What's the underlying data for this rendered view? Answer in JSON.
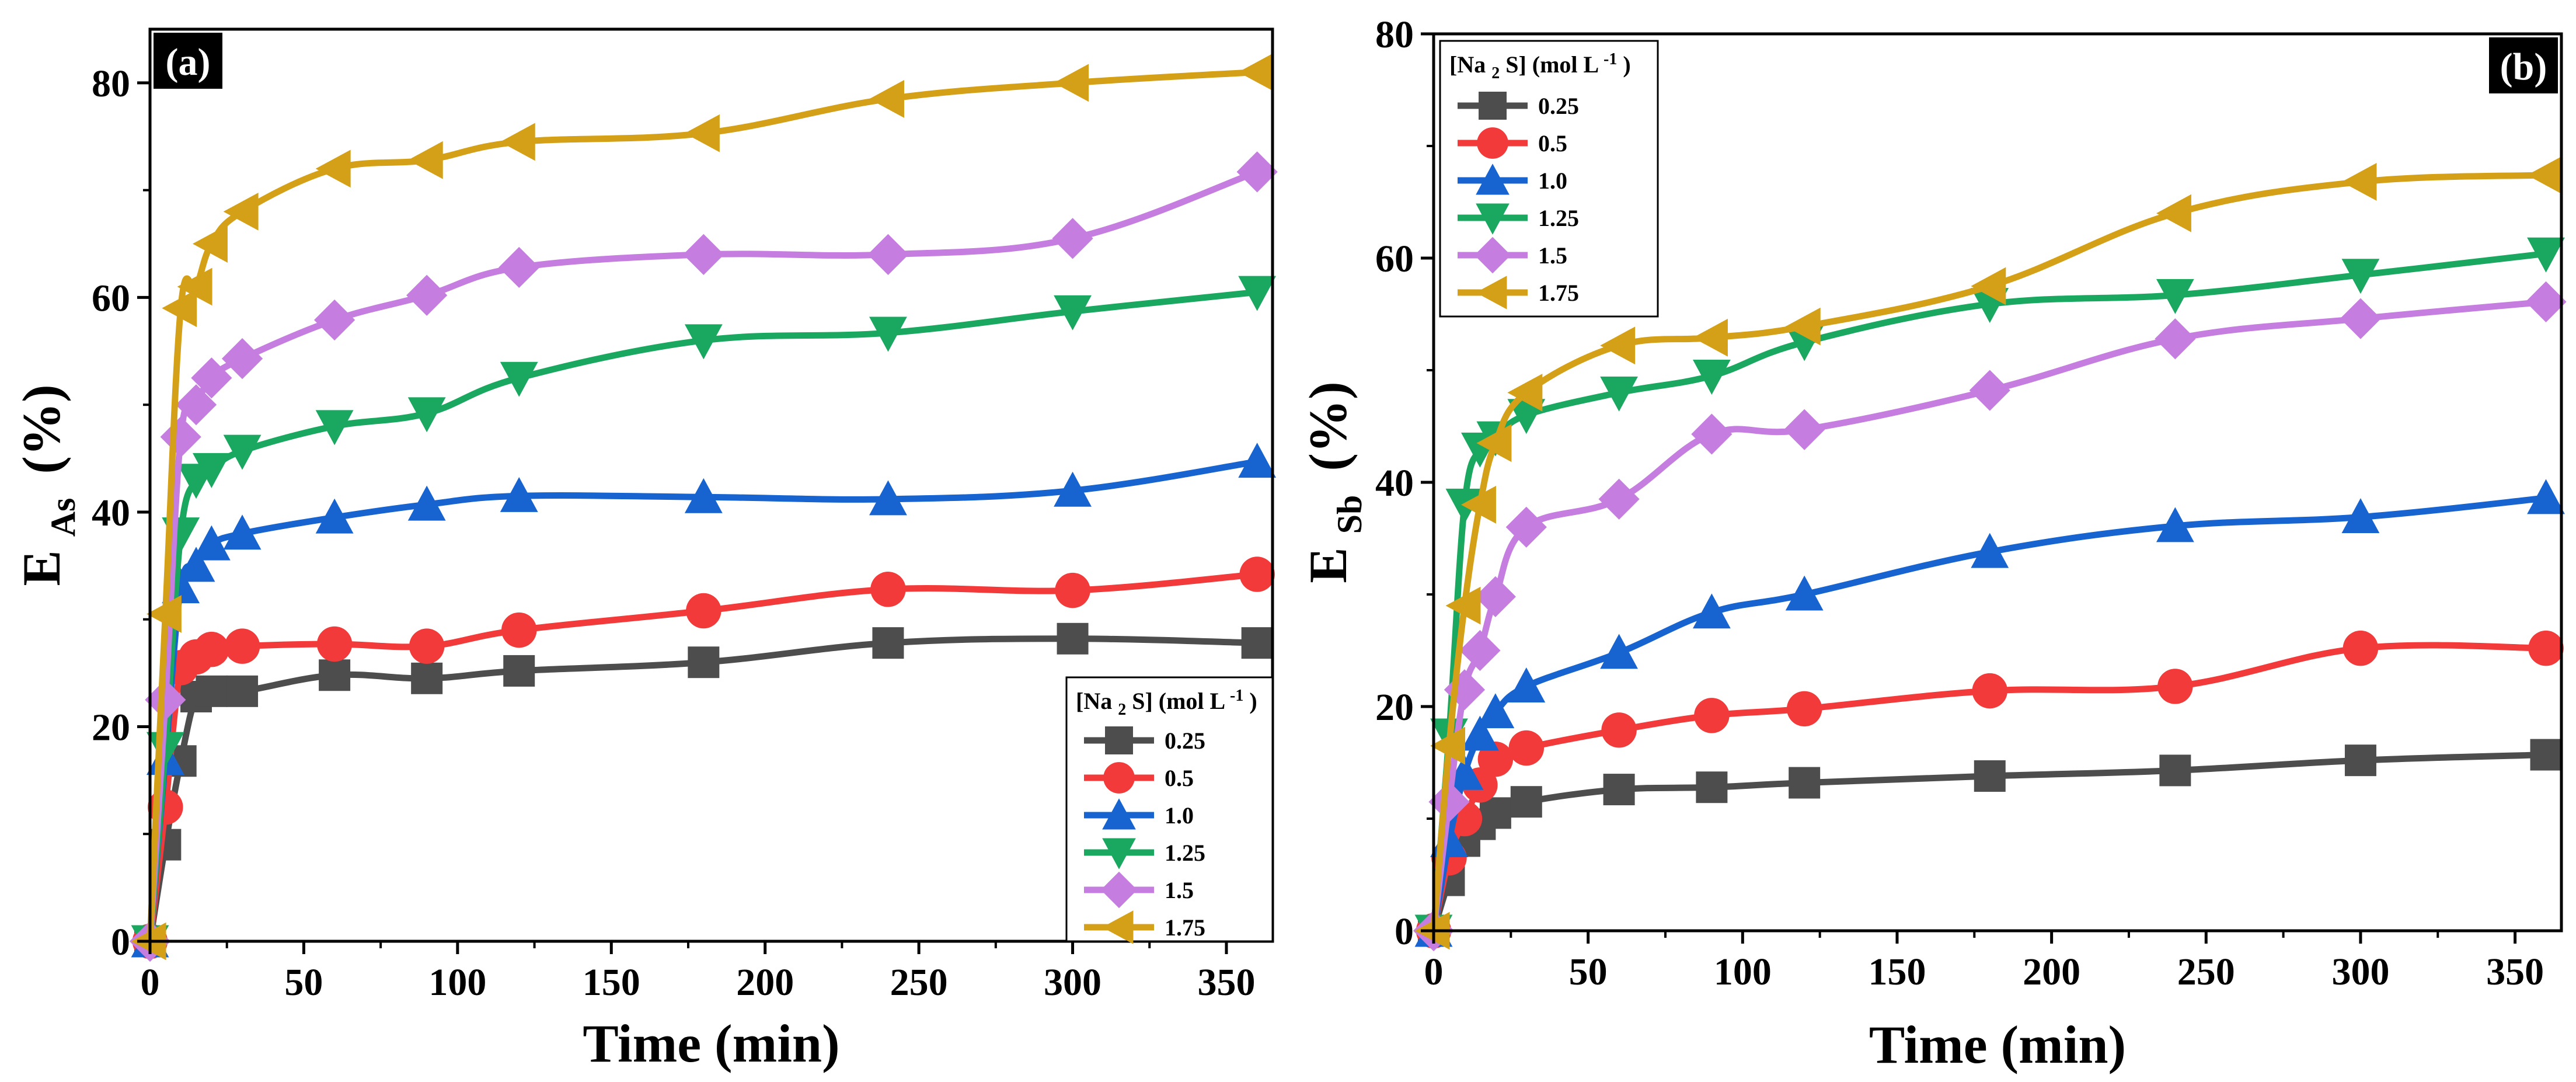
{
  "chart_data": [
    {
      "type": "line",
      "panel_label": "(a)",
      "xlabel": "Time (min)",
      "ylabel": {
        "main": "E",
        "sub": "As",
        "unit": "(%)"
      },
      "xlim": [
        0,
        365
      ],
      "ylim": [
        0,
        85
      ],
      "xticks": [
        0,
        50,
        100,
        150,
        200,
        250,
        300,
        350
      ],
      "yticks": [
        0,
        20,
        40,
        60,
        80
      ],
      "legend": {
        "placement": "bottom-right",
        "title_pre": "[Na",
        "title_sub": "2",
        "title_mid": "S] (mol L",
        "title_sup": "-1",
        "title_post": ")"
      },
      "x": [
        0,
        5,
        10,
        15,
        20,
        30,
        60,
        90,
        120,
        180,
        240,
        300,
        360
      ],
      "series": [
        {
          "name": "0.25",
          "color": "#4d4d4d",
          "marker": "square",
          "values": [
            0,
            9,
            16.8,
            22.8,
            23.3,
            23.3,
            24.8,
            24.5,
            25.2,
            26,
            27.8,
            28.2,
            27.8
          ]
        },
        {
          "name": "0.5",
          "color": "#f23a3a",
          "marker": "circle",
          "values": [
            0,
            12.5,
            25.5,
            26.5,
            27.2,
            27.5,
            27.7,
            27.5,
            29,
            30.8,
            32.8,
            32.7,
            34.2
          ]
        },
        {
          "name": "1.0",
          "color": "#1764d0",
          "marker": "triangle-up",
          "values": [
            0,
            17,
            33,
            35,
            37,
            38,
            39.5,
            40.7,
            41.5,
            41.4,
            41.2,
            42,
            44.7
          ]
        },
        {
          "name": "1.25",
          "color": "#1aa860",
          "marker": "triangle-down",
          "values": [
            0,
            18,
            38,
            43,
            44,
            45.7,
            48,
            49.2,
            52.5,
            56,
            56.7,
            58.7,
            60.5
          ]
        },
        {
          "name": "1.5",
          "color": "#c57ddf",
          "marker": "diamond",
          "values": [
            0,
            22.5,
            47,
            50,
            52.5,
            54.3,
            57.9,
            60.2,
            62.8,
            64,
            64,
            65.5,
            71.7
          ]
        },
        {
          "name": "1.75",
          "color": "#d4a017",
          "marker": "triangle-left",
          "values": [
            0,
            30.5,
            59,
            61,
            65,
            68,
            72,
            72.8,
            74.5,
            75.3,
            78.5,
            80,
            81
          ]
        }
      ]
    },
    {
      "type": "line",
      "panel_label": "(b)",
      "xlabel": "Time (min)",
      "ylabel": {
        "main": "E",
        "sub": "Sb",
        "unit": "(%)"
      },
      "xlim": [
        0,
        365
      ],
      "ylim": [
        0,
        80
      ],
      "xticks": [
        0,
        50,
        100,
        150,
        200,
        250,
        300,
        350
      ],
      "yticks": [
        0,
        20,
        40,
        60,
        80
      ],
      "legend": {
        "placement": "top-left",
        "title_pre": "[Na",
        "title_sub": "2",
        "title_mid": "S]  (mol L",
        "title_sup": "-1",
        "title_post": ")"
      },
      "x": [
        0,
        5,
        10,
        15,
        20,
        30,
        60,
        90,
        120,
        180,
        240,
        300,
        360
      ],
      "series": [
        {
          "name": "0.25",
          "color": "#4d4d4d",
          "marker": "square",
          "values": [
            0,
            4.5,
            8,
            9.5,
            10.5,
            11.5,
            12.6,
            12.8,
            13.2,
            13.8,
            14.3,
            15.2,
            15.7
          ]
        },
        {
          "name": "0.5",
          "color": "#f23a3a",
          "marker": "circle",
          "values": [
            0,
            6.5,
            10,
            13,
            15.3,
            16.3,
            17.9,
            19.2,
            19.8,
            21.4,
            21.8,
            25.2,
            25.2
          ]
        },
        {
          "name": "1.0",
          "color": "#1764d0",
          "marker": "triangle-up",
          "values": [
            0,
            8,
            14,
            17.5,
            19.5,
            21.8,
            24.8,
            28.4,
            30,
            33.8,
            36.1,
            36.9,
            38.6
          ]
        },
        {
          "name": "1.25",
          "color": "#1aa860",
          "marker": "triangle-down",
          "values": [
            0,
            17.5,
            38,
            43,
            44,
            46,
            48,
            49.5,
            52.5,
            55.9,
            56.7,
            58.5,
            60.4
          ]
        },
        {
          "name": "1.5",
          "color": "#c57ddf",
          "marker": "diamond",
          "values": [
            0,
            11.5,
            21.5,
            25,
            29.8,
            36,
            38.5,
            44.3,
            44.7,
            48.2,
            52.8,
            54.6,
            56.1
          ]
        },
        {
          "name": "1.75",
          "color": "#d4a017",
          "marker": "triangle-left",
          "values": [
            0,
            16.5,
            29,
            38,
            43.5,
            48,
            52.2,
            52.9,
            53.9,
            57.5,
            64,
            66.8,
            67.4
          ]
        }
      ]
    }
  ]
}
